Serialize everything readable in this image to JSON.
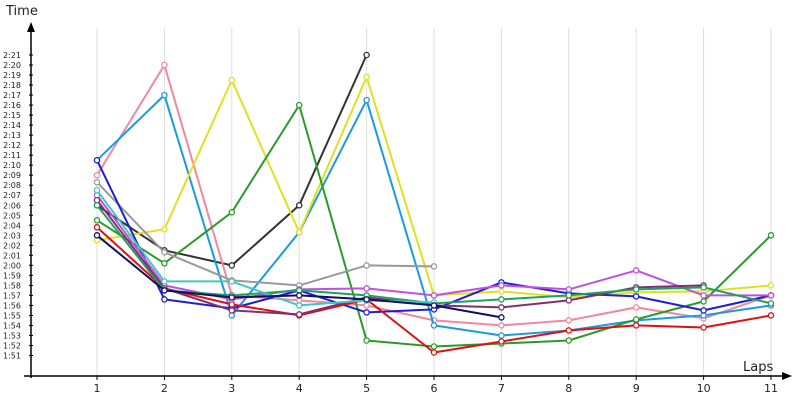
{
  "chart_data": {
    "type": "line",
    "xlabel": "Laps",
    "ylabel": "Time",
    "categories": [
      1,
      2,
      3,
      4,
      5,
      6,
      7,
      8,
      9,
      10,
      11
    ],
    "y_ticks": [
      "1:51",
      "1:52",
      "1:53",
      "1:54",
      "1:55",
      "1:56",
      "1:57",
      "1:58",
      "1:59",
      "2:00",
      "2:01",
      "2:02",
      "2:03",
      "2:04",
      "2:05",
      "2:06",
      "2:07",
      "2:08",
      "2:09",
      "2:10",
      "2:11",
      "2:12",
      "2:13",
      "2:14",
      "2:15",
      "2:16",
      "2:17",
      "2:18",
      "2:19",
      "2:20",
      "2:21"
    ],
    "ylim_seconds": [
      110,
      141.5
    ],
    "grid": "vertical",
    "series": [
      {
        "color": "#333333",
        "values": [
          "2:06.0",
          "2:01.5",
          "2:00.0",
          "2:06.0",
          "2:21.0",
          null,
          null,
          null,
          null,
          null,
          null
        ]
      },
      {
        "color": "#f088a0",
        "values": [
          "2:09.0",
          "2:20.0",
          "1:57.0",
          "1:56.5",
          "1:56.0",
          "1:54.5",
          "1:54.0",
          "1:54.5",
          "1:55.8",
          "1:54.7",
          "1:57.0"
        ]
      },
      {
        "color": "#1a9ae0",
        "values": [
          "2:10.5",
          "2:17.0",
          "1:55.0",
          "2:03.3",
          "2:16.5",
          "1:54.0",
          "1:53.0",
          "1:53.5",
          "1:54.5",
          "1:55.0",
          "1:56.0"
        ]
      },
      {
        "color": "#e0e020",
        "values": [
          "2:02.5",
          "2:03.6",
          "2:18.5",
          "2:03.3",
          "2:18.8",
          "1:57.0",
          "1:57.4",
          "1:56.8",
          "1:57.3",
          "1:57.4",
          "1:58.0"
        ]
      },
      {
        "color": "#2a9a2a",
        "values": [
          "2:04.5",
          "2:00.2",
          "2:05.3",
          "2:16.0",
          "1:52.5",
          "1:51.9",
          "1:52.2",
          "1:52.5",
          "1:54.6",
          "1:56.4",
          "2:03.0"
        ]
      },
      {
        "color": "#999999",
        "values": [
          "2:08.3",
          "2:01.3",
          "1:58.5",
          "1:58.0",
          "2:00.0",
          "1:59.9",
          null,
          null,
          null,
          null,
          null
        ]
      },
      {
        "color": "#1f1fd1",
        "values": [
          "2:10.5",
          "1:56.6",
          "1:55.7",
          "1:57.5",
          "1:55.3",
          "1:55.6",
          "1:58.3",
          "1:57.2",
          "1:56.9",
          "1:55.5",
          "1:57.0"
        ]
      },
      {
        "color": "#e01010",
        "values": [
          "2:03.8",
          "1:57.7",
          "1:56.1",
          "1:55.0",
          "1:56.6",
          "1:51.3",
          "1:52.4",
          "1:53.5",
          "1:54.0",
          "1:53.8",
          "1:55.0"
        ]
      },
      {
        "color": "#c050e0",
        "values": [
          "2:07.0",
          "1:58.0",
          "1:56.6",
          "1:57.6",
          "1:57.7",
          "1:57.0",
          "1:58.0",
          "1:57.6",
          "1:59.5",
          "1:57.0",
          "1:57.0"
        ]
      },
      {
        "color": "#803070",
        "values": [
          "2:06.5",
          "1:57.7",
          "1:55.5",
          "1:55.1",
          "1:56.8",
          "1:56.0",
          "1:55.8",
          "1:56.5",
          "1:57.8",
          "1:58.0",
          null
        ]
      },
      {
        "color": "#20a060",
        "values": [
          "2:06.0",
          "1:57.5",
          "1:57.0",
          "1:57.5",
          "1:57.0",
          "1:56.2",
          "1:56.6",
          "1:57.0",
          "1:57.6",
          "1:57.8",
          "1:56.2"
        ]
      },
      {
        "color": "#40c8c0",
        "values": [
          "2:07.5",
          "1:58.4",
          "1:58.4",
          "1:56.0",
          "1:56.5",
          "1:56.3",
          null,
          null,
          null,
          null,
          null
        ]
      },
      {
        "color": "#101060",
        "values": [
          "2:03.0",
          "1:57.5",
          "1:56.8",
          "1:57.0",
          "1:56.6",
          "1:56.0",
          "1:54.8",
          null,
          null,
          null,
          null
        ]
      }
    ]
  }
}
